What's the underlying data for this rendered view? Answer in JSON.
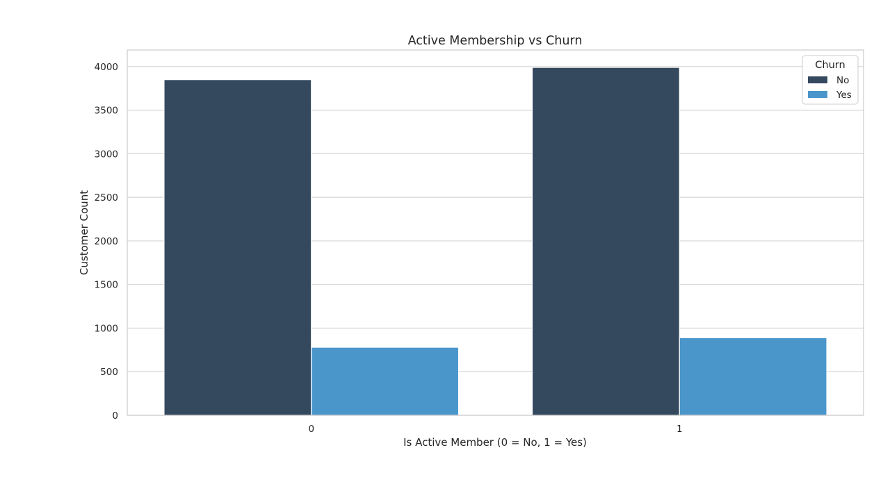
{
  "chart_data": {
    "type": "bar",
    "title": "Active Membership vs Churn",
    "xlabel": "Is Active Member (0 = No, 1 = Yes)",
    "ylabel": "Customer Count",
    "categories": [
      "0",
      "1"
    ],
    "series": [
      {
        "name": "No",
        "color": "#34495e",
        "values": [
          3850,
          3990
        ]
      },
      {
        "name": "Yes",
        "color": "#4a96cb",
        "values": [
          780,
          890
        ]
      }
    ],
    "ylim": [
      0,
      4190
    ],
    "yticks": [
      0,
      500,
      1000,
      1500,
      2000,
      2500,
      3000,
      3500,
      4000
    ],
    "grid": "horizontal",
    "legend": {
      "title": "Churn",
      "position": "top-right"
    }
  }
}
